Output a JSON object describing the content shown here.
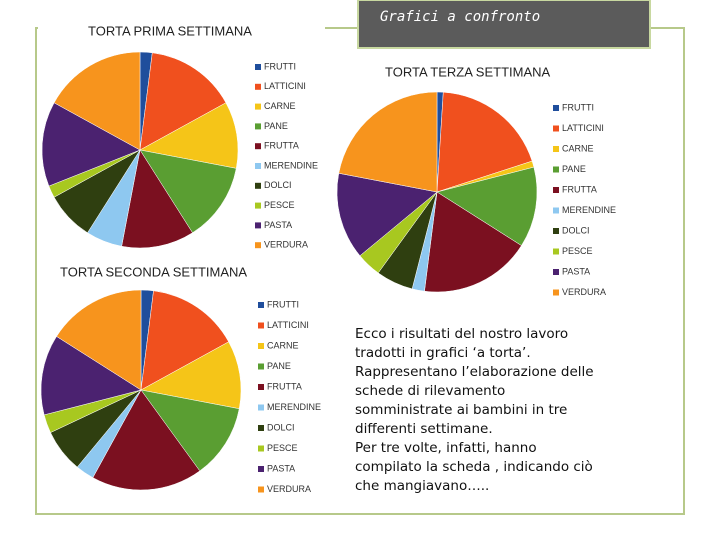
{
  "slide": {
    "title": "Grafici a confronto",
    "text": [
      "Ecco i risultati del nostro lavoro",
      "tradotti in grafici  ‘a torta’.",
      "Rappresentano l’elaborazione delle",
      "schede di rilevamento",
      "somministrate ai bambini in tre",
      "differenti settimane.",
      "Per tre volte, infatti, hanno",
      "compilato la scheda , indicando ciò",
      "che mangiavano….."
    ]
  },
  "chart_data": [
    {
      "type": "pie",
      "title": "TORTA PRIMA SETTIMANA",
      "categories": [
        "FRUTTI",
        "LATTICINI",
        "CARNE",
        "PANE",
        "FRUTTA",
        "MERENDINE",
        "DOLCI",
        "PESCE",
        "PASTA",
        "VERDURA"
      ],
      "colors": [
        "#1f4e9c",
        "#f0501e",
        "#f5c518",
        "#5a9e32",
        "#7b1020",
        "#8ec8f0",
        "#2f3f10",
        "#a8c820",
        "#4b2270",
        "#f7941d"
      ],
      "values": [
        2,
        15,
        11,
        13,
        12,
        6,
        8,
        2,
        14,
        17
      ]
    },
    {
      "type": "pie",
      "title": "TORTA SECONDA SETTIMANA",
      "categories": [
        "FRUTTI",
        "LATTICINI",
        "CARNE",
        "PANE",
        "FRUTTA",
        "MERENDINE",
        "DOLCI",
        "PESCE",
        "PASTA",
        "VERDURA"
      ],
      "colors": [
        "#1f4e9c",
        "#f0501e",
        "#f5c518",
        "#5a9e32",
        "#7b1020",
        "#8ec8f0",
        "#2f3f10",
        "#a8c820",
        "#4b2270",
        "#f7941d"
      ],
      "values": [
        2,
        15,
        11,
        12,
        18,
        3,
        7,
        3,
        13,
        16
      ]
    },
    {
      "type": "pie",
      "title": "TORTA TERZA SETTIMANA",
      "categories": [
        "FRUTTI",
        "LATTICINI",
        "CARNE",
        "PANE",
        "FRUTTA",
        "MERENDINE",
        "DOLCI",
        "PESCE",
        "PASTA",
        "VERDURA"
      ],
      "colors": [
        "#1f4e9c",
        "#f0501e",
        "#f5c518",
        "#5a9e32",
        "#7b1020",
        "#8ec8f0",
        "#2f3f10",
        "#a8c820",
        "#4b2270",
        "#f7941d"
      ],
      "values": [
        1,
        19,
        1,
        13,
        18,
        2,
        6,
        4,
        14,
        22
      ]
    }
  ]
}
